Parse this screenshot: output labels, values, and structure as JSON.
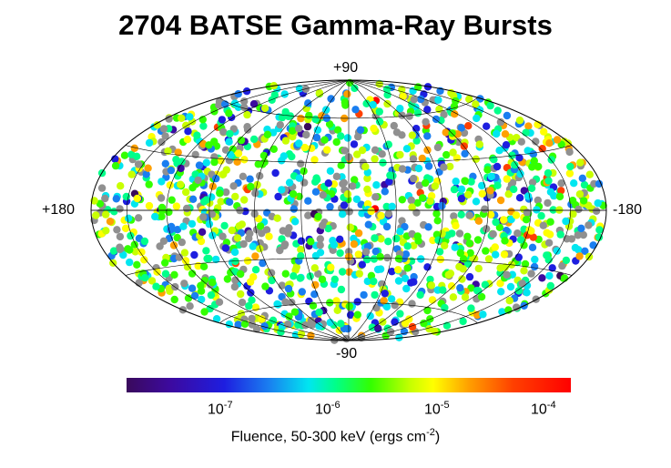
{
  "chart_data": {
    "type": "scatter",
    "title": "2704 BATSE Gamma-Ray Bursts",
    "projection": "Aitoff/Hammer equal-area, galactic coordinates",
    "axis_labels": {
      "top": "+90",
      "bottom": "-90",
      "left": "+180",
      "right": "-180"
    },
    "longitude_range": [
      180,
      -180
    ],
    "latitude_range": [
      -90,
      90
    ],
    "n_points": 2704,
    "point_distribution": "isotropic",
    "color_scale": {
      "label_prefix": "Fluence, 50-300 keV (ergs cm",
      "label_exponent": "-2",
      "label_suffix": ")",
      "scale": "log",
      "range": [
        1e-08,
        0.0002
      ],
      "ticks": [
        {
          "base": "10",
          "exp": "-7",
          "value": 1e-07
        },
        {
          "base": "10",
          "exp": "-6",
          "value": 1e-06
        },
        {
          "base": "10",
          "exp": "-5",
          "value": 1e-05
        },
        {
          "base": "10",
          "exp": "-4",
          "value": 0.0001
        }
      ],
      "colors": [
        "#3a0a5c",
        "#3c0aa0",
        "#1e1ee0",
        "#1a7ef0",
        "#00e6f0",
        "#00ff8a",
        "#33ff00",
        "#c8ff00",
        "#ffff00",
        "#ffa000",
        "#ff4000",
        "#ff0000"
      ],
      "no_data_color": "#909090"
    },
    "grid": true
  }
}
